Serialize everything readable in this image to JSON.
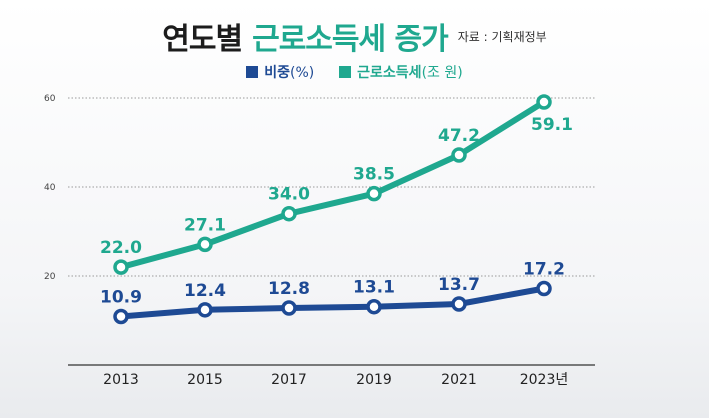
{
  "header": {
    "title_main": "연도별",
    "title_accent": "근로소득세 증가",
    "source": "자료 : 기획재정부"
  },
  "colors": {
    "ratio_series": "#1e4a94",
    "tax_series": "#1fa88f",
    "grid": "#9a9a9a"
  },
  "chart_data": {
    "type": "line",
    "x": [
      "2013",
      "2015",
      "2017",
      "2019",
      "2021",
      "2023년"
    ],
    "ylim": [
      0,
      60
    ],
    "yticks": [
      20,
      40,
      60
    ],
    "grid": true,
    "legend_position": "top-center",
    "series": [
      {
        "name": "비중",
        "unit": "(%)",
        "values": [
          10.9,
          12.4,
          12.8,
          13.1,
          13.7,
          17.2
        ],
        "labels": [
          "10.9",
          "12.4",
          "12.8",
          "13.1",
          "13.7",
          "17.2"
        ]
      },
      {
        "name": "근로소득세",
        "unit": "(조 원)",
        "values": [
          22.0,
          27.1,
          34.0,
          38.5,
          47.2,
          59.1
        ],
        "labels": [
          "22.0",
          "27.1",
          "34.0",
          "38.5",
          "47.2",
          "59.1"
        ]
      }
    ]
  }
}
